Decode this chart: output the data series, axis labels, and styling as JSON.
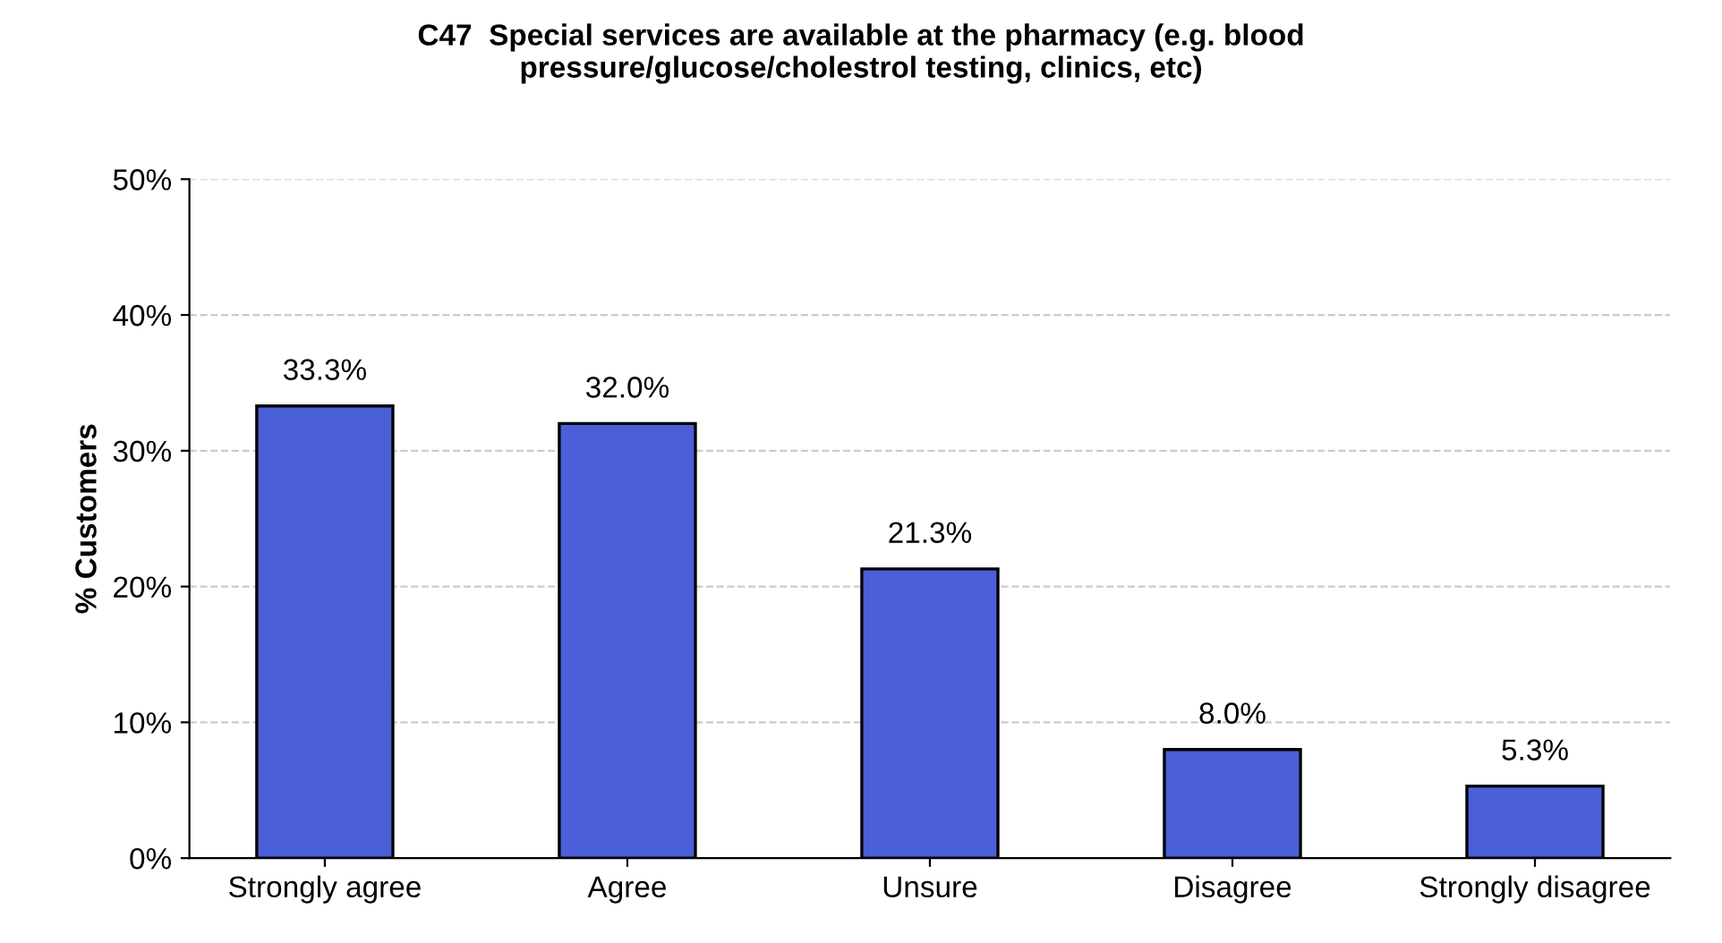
{
  "chart_data": {
    "type": "bar",
    "title": "C47  Special services are available at the pharmacy (e.g. blood\npressure/glucose/cholestrol testing, clinics, etc)",
    "ylabel": "% Customers",
    "categories": [
      "Strongly agree",
      "Agree",
      "Unsure",
      "Disagree",
      "Strongly disagree"
    ],
    "values": [
      33.3,
      32.0,
      21.3,
      8.0,
      5.3
    ],
    "value_labels": [
      "33.3%",
      "32.0%",
      "21.3%",
      "8.0%",
      "5.3%"
    ],
    "color": "#4a5fd8",
    "ylim": [
      0,
      50
    ],
    "yticks": [
      {
        "value": 0,
        "label": "0%"
      },
      {
        "value": 10,
        "label": "10%"
      },
      {
        "value": 20,
        "label": "20%"
      },
      {
        "value": 30,
        "label": "30%"
      },
      {
        "value": 40,
        "label": "40%"
      },
      {
        "value": 50,
        "label": "50%"
      }
    ],
    "grid": "y"
  }
}
